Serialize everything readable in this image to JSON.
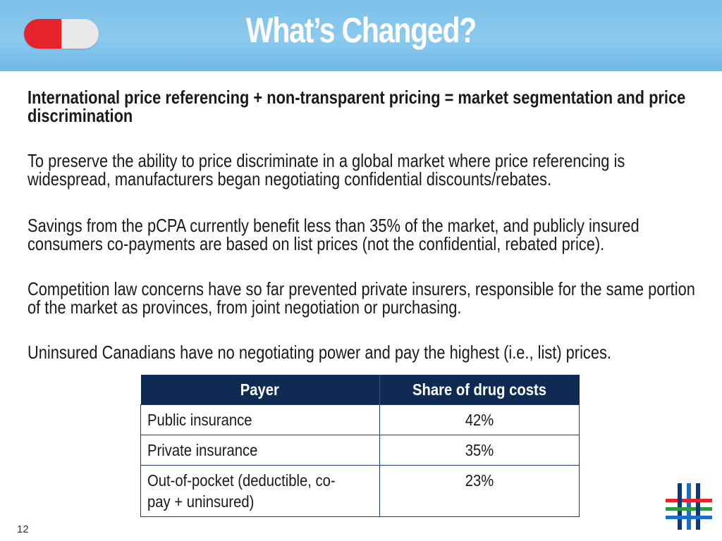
{
  "header": {
    "title": "What’s Changed?",
    "colors": {
      "bar": "#7cc0ea",
      "pill_red": "#e8222a",
      "pill_white": "#e9e9ea"
    }
  },
  "paragraphs": [
    {
      "text": "International price referencing + non-transparent pricing = market segmentation and price discrimination",
      "bold": true
    },
    {
      "text": "To preserve the ability to price discriminate in a global market where price referencing is widespread, manufacturers began negotiating confidential discounts/rebates."
    },
    {
      "text": "Savings from the pCPA currently benefit less than 35% of the market, and publicly insured consumers co-payments are based on list prices (not the confidential, rebated price)."
    },
    {
      "text": "Competition law concerns have so far prevented private insurers, responsible for the same portion of the market as provinces, from joint negotiation or purchasing."
    },
    {
      "text": "Uninsured Canadians have no negotiating power and pay the highest (i.e., list) prices."
    }
  ],
  "table": {
    "headers": [
      "Payer",
      "Share of drug costs"
    ],
    "rows": [
      [
        "Public insurance",
        "42%"
      ],
      [
        "Private insurance",
        "35%"
      ],
      [
        "Out-of-pocket (deductible, co-pay + uninsured)",
        "23%"
      ]
    ],
    "header_color": "#0f2b55"
  },
  "footer": {
    "page_number": "12"
  }
}
